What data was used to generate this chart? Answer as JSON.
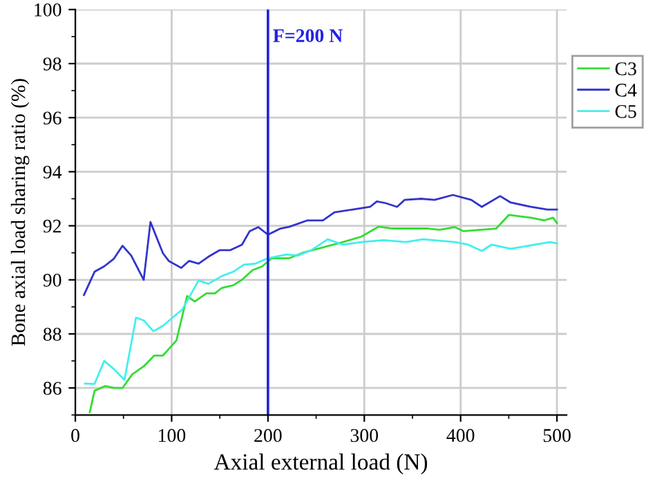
{
  "chart_data": {
    "type": "line",
    "xlabel": "Axial external load (N)",
    "ylabel": "Bone axial load sharing ratio (%)",
    "xlim": [
      0,
      510
    ],
    "ylim": [
      85,
      100
    ],
    "xticks": [
      0,
      100,
      200,
      300,
      400,
      500
    ],
    "yticks": [
      86,
      88,
      90,
      92,
      94,
      96,
      98,
      100
    ],
    "grid": true,
    "legend": "top right",
    "line_style": "solid",
    "marker": "none",
    "series": [
      {
        "name": "C3",
        "color": "#33dd33",
        "x": [
          15,
          20,
          31,
          40,
          49,
          59,
          71,
          82,
          91,
          105,
          116,
          124,
          136,
          145,
          152,
          164,
          173,
          184,
          194,
          204,
          222,
          236,
          257,
          278,
          297,
          315,
          329,
          366,
          378,
          394,
          403,
          437,
          450,
          473,
          487,
          496,
          500
        ],
        "values": [
          85.1,
          85.9,
          86.07,
          86.0,
          86.0,
          86.5,
          86.8,
          87.2,
          87.2,
          87.76,
          89.4,
          89.2,
          89.5,
          89.5,
          89.7,
          89.8,
          90.0,
          90.36,
          90.5,
          90.8,
          90.8,
          91.0,
          91.2,
          91.4,
          91.6,
          91.97,
          91.9,
          91.9,
          91.85,
          91.95,
          91.8,
          91.9,
          92.4,
          92.3,
          92.2,
          92.3,
          92.1
        ]
      },
      {
        "name": "C4",
        "color": "#3333cc",
        "x": [
          9,
          20,
          30,
          40,
          49,
          58,
          71,
          78,
          91,
          97,
          110,
          118,
          128,
          138,
          150,
          161,
          173,
          181,
          190,
          200,
          213,
          222,
          241,
          257,
          269,
          288,
          306,
          313,
          322,
          334,
          342,
          359,
          373,
          392,
          411,
          422,
          441,
          452,
          473,
          490,
          500
        ],
        "values": [
          89.44,
          90.3,
          90.5,
          90.78,
          91.26,
          90.9,
          90.0,
          92.14,
          90.98,
          90.7,
          90.44,
          90.7,
          90.6,
          90.85,
          91.1,
          91.1,
          91.3,
          91.8,
          91.95,
          91.67,
          91.9,
          91.96,
          92.2,
          92.2,
          92.5,
          92.6,
          92.7,
          92.9,
          92.84,
          92.7,
          92.96,
          93.0,
          92.96,
          93.14,
          92.96,
          92.7,
          93.1,
          92.86,
          92.7,
          92.6,
          92.6
        ]
      },
      {
        "name": "C5",
        "color": "#44eeee",
        "x": [
          10,
          20,
          30,
          40,
          51,
          63,
          71,
          81,
          91,
          101,
          111,
          128,
          138,
          152,
          164,
          175,
          187,
          200,
          219,
          231,
          245,
          262,
          278,
          297,
          320,
          343,
          361,
          394,
          408,
          422,
          432,
          452,
          477,
          493,
          500
        ],
        "values": [
          86.16,
          86.15,
          87.0,
          86.7,
          86.3,
          88.6,
          88.5,
          88.1,
          88.3,
          88.6,
          88.9,
          89.98,
          89.85,
          90.14,
          90.3,
          90.56,
          90.6,
          90.8,
          90.94,
          90.9,
          91.1,
          91.5,
          91.3,
          91.4,
          91.47,
          91.4,
          91.5,
          91.4,
          91.3,
          91.07,
          91.3,
          91.15,
          91.3,
          91.4,
          91.35
        ]
      }
    ],
    "ref_lines": [
      {
        "axis": "x",
        "value": 200,
        "label": "F=200 N",
        "color": "#2222dd",
        "line_style": "solid"
      }
    ]
  }
}
